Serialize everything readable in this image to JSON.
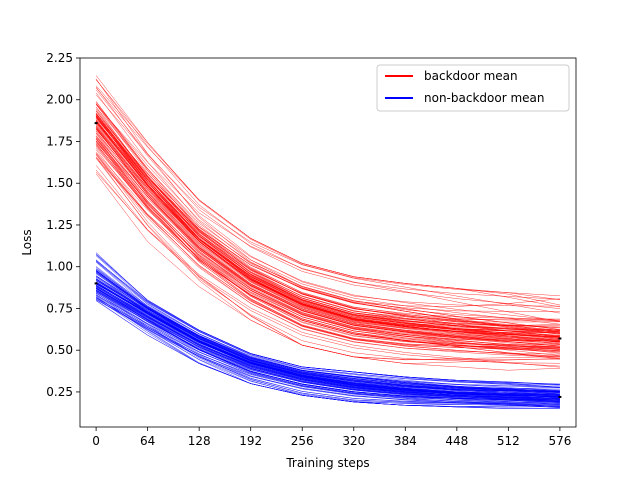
{
  "chart_data": {
    "type": "line",
    "title": "",
    "xlabel": "Training steps",
    "ylabel": "Loss",
    "xlim": [
      -20,
      596
    ],
    "ylim": [
      0.04,
      2.25
    ],
    "x_ticks": [
      0,
      64,
      128,
      192,
      256,
      320,
      384,
      448,
      512,
      576
    ],
    "x_tick_labels": [
      "0",
      "64",
      "128",
      "192",
      "256",
      "320",
      "384",
      "448",
      "512",
      "576"
    ],
    "y_ticks": [
      0.25,
      0.5,
      0.75,
      1.0,
      1.25,
      1.5,
      1.75,
      2.0,
      2.25
    ],
    "y_tick_labels": [
      "0.25",
      "0.50",
      "0.75",
      "1.00",
      "1.25",
      "1.50",
      "1.75",
      "2.00",
      "2.25"
    ],
    "grid": false,
    "legend_position": "top-right",
    "x": [
      0,
      64,
      128,
      192,
      256,
      320,
      384,
      448,
      512,
      576
    ],
    "series": [
      {
        "name": "backdoor mean",
        "color": "#ff0000",
        "values": [
          1.86,
          1.48,
          1.15,
          0.92,
          0.77,
          0.68,
          0.64,
          0.61,
          0.59,
          0.57
        ],
        "band_min": [
          1.52,
          1.15,
          0.88,
          0.68,
          0.53,
          0.46,
          0.42,
          0.4,
          0.38,
          0.37
        ],
        "band_max": [
          2.15,
          1.75,
          1.4,
          1.17,
          1.02,
          0.94,
          0.9,
          0.87,
          0.85,
          0.83
        ],
        "run_count": 110
      },
      {
        "name": "non-backdoor mean",
        "color": "#0000ff",
        "values": [
          0.9,
          0.72,
          0.55,
          0.42,
          0.34,
          0.29,
          0.26,
          0.24,
          0.23,
          0.22
        ],
        "band_min": [
          0.78,
          0.59,
          0.42,
          0.3,
          0.23,
          0.19,
          0.17,
          0.16,
          0.15,
          0.14
        ],
        "band_max": [
          1.09,
          0.8,
          0.62,
          0.48,
          0.4,
          0.37,
          0.34,
          0.32,
          0.31,
          0.3
        ],
        "run_count": 110
      }
    ]
  }
}
